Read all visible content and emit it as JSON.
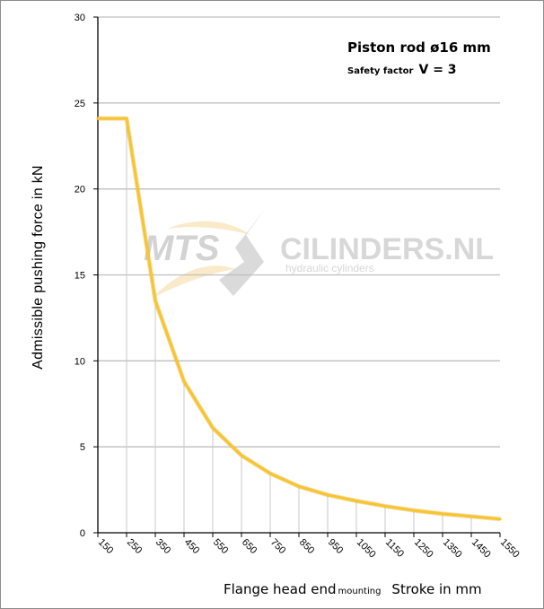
{
  "chart_data": {
    "type": "line",
    "annotation_line1": "Piston rod ø16 mm",
    "annotation_line2_small": "Safety factor",
    "annotation_line2_large": "V = 3",
    "ylabel": "Admissible pushing force in kN",
    "xlabel_part1": "Flange head end",
    "xlabel_part2": "mounting",
    "xlabel_part3": "Stroke in mm",
    "x": [
      150,
      250,
      350,
      450,
      550,
      650,
      750,
      850,
      950,
      1050,
      1150,
      1250,
      1350,
      1450,
      1550
    ],
    "xlim": [
      150,
      1550
    ],
    "ylim": [
      0,
      30
    ],
    "yticks": [
      0,
      5,
      10,
      15,
      20,
      25,
      30
    ],
    "grid": "horizontal",
    "series": [
      {
        "values": [
          24.1,
          24.1,
          13.5,
          8.8,
          6.1,
          4.5,
          3.45,
          2.7,
          2.2,
          1.85,
          1.55,
          1.3,
          1.1,
          0.95,
          0.8
        ],
        "color": "#f7c531"
      }
    ],
    "watermark": {
      "text1": "MTS",
      "text2": "CILINDERS.NL",
      "text3": "hydraulic  cylinders"
    }
  }
}
